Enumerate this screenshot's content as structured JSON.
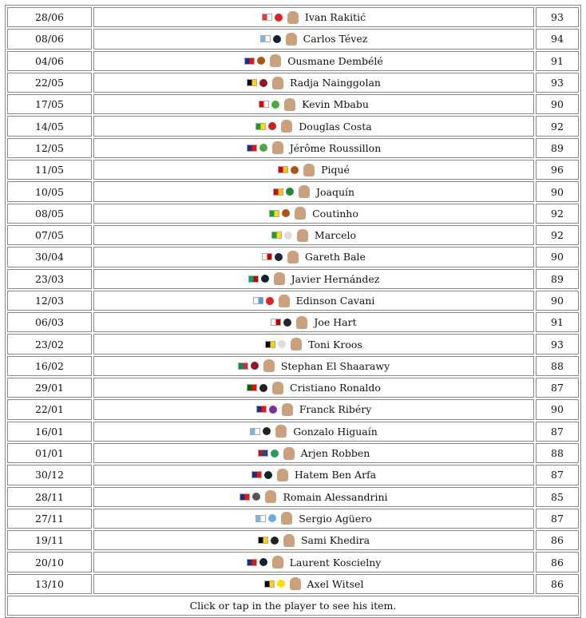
{
  "footer": "Click or tap in the player to see his item.",
  "rows": [
    {
      "date": "28/06",
      "name": "Ivan Rakitić",
      "rating": "93",
      "flag": "hr-flag-icon",
      "club": "sevilla-badge-icon",
      "colors": [
        "#e33",
        "#fff"
      ],
      "club_color": "#d22"
    },
    {
      "date": "08/06",
      "name": "Carlos Tévez",
      "rating": "94",
      "flag": "ar-flag-icon",
      "club": "boca-badge-icon",
      "colors": [
        "#7fb3e6",
        "#fff"
      ],
      "club_color": "#123"
    },
    {
      "date": "04/06",
      "name": "Ousmane Dembélé",
      "rating": "91",
      "flag": "fr-flag-icon",
      "club": "barcelona-badge-icon",
      "colors": [
        "#1a2f8a",
        "#e11"
      ],
      "club_color": "#a51"
    },
    {
      "date": "22/05",
      "name": "Radja Nainggolan",
      "rating": "93",
      "flag": "be-flag-icon",
      "club": "roma-badge-icon",
      "colors": [
        "#000",
        "#ffd400"
      ],
      "club_color": "#8b1a2b"
    },
    {
      "date": "17/05",
      "name": "Kevin Mbabu",
      "rating": "90",
      "flag": "ch-flag-icon",
      "club": "wolfsburg-badge-icon",
      "colors": [
        "#e00",
        "#fff"
      ],
      "club_color": "#4a4"
    },
    {
      "date": "14/05",
      "name": "Douglas Costa",
      "rating": "92",
      "flag": "br-flag-icon",
      "club": "bayern-badge-icon",
      "colors": [
        "#1a9a3a",
        "#ffdc00"
      ],
      "club_color": "#c22"
    },
    {
      "date": "12/05",
      "name": "Jérôme Roussillon",
      "rating": "89",
      "flag": "fr-flag-icon",
      "club": "wolfsburg-badge-icon",
      "colors": [
        "#1a2f8a",
        "#e11"
      ],
      "club_color": "#4a4"
    },
    {
      "date": "11/05",
      "name": "Piqué",
      "rating": "96",
      "flag": "es-flag-icon",
      "club": "barcelona-badge-icon",
      "colors": [
        "#c60b1e",
        "#ffc400"
      ],
      "club_color": "#a51"
    },
    {
      "date": "10/05",
      "name": "Joaquín",
      "rating": "90",
      "flag": "es-flag-icon",
      "club": "betis-badge-icon",
      "colors": [
        "#c60b1e",
        "#ffc400"
      ],
      "club_color": "#1a8a3a"
    },
    {
      "date": "08/05",
      "name": "Coutinho",
      "rating": "92",
      "flag": "br-flag-icon",
      "club": "barcelona-badge-icon",
      "colors": [
        "#1a9a3a",
        "#ffdc00"
      ],
      "club_color": "#a51"
    },
    {
      "date": "07/05",
      "name": "Marcelo",
      "rating": "92",
      "flag": "br-flag-icon",
      "club": "real-madrid-badge-icon",
      "colors": [
        "#1a9a3a",
        "#ffdc00"
      ],
      "club_color": "#ddd"
    },
    {
      "date": "30/04",
      "name": "Gareth Bale",
      "rating": "90",
      "flag": "wales-flag-icon",
      "club": "tottenham-badge-icon",
      "colors": [
        "#fff",
        "#c00"
      ],
      "club_color": "#223"
    },
    {
      "date": "23/03",
      "name": "Javier Hernández",
      "rating": "89",
      "flag": "mx-flag-icon",
      "club": "la-galaxy-badge-icon",
      "colors": [
        "#0a6",
        "#c00"
      ],
      "club_color": "#123"
    },
    {
      "date": "12/03",
      "name": "Edinson Cavani",
      "rating": "90",
      "flag": "uy-flag-icon",
      "club": "man-united-badge-icon",
      "colors": [
        "#fff",
        "#5b9bd5"
      ],
      "club_color": "#d22"
    },
    {
      "date": "06/03",
      "name": "Joe Hart",
      "rating": "91",
      "flag": "en-flag-icon",
      "club": "tottenham-badge-icon",
      "colors": [
        "#fff",
        "#c00"
      ],
      "club_color": "#223"
    },
    {
      "date": "23/02",
      "name": "Toni Kroos",
      "rating": "93",
      "flag": "de-flag-icon",
      "club": "real-madrid-badge-icon",
      "colors": [
        "#000",
        "#ffce00"
      ],
      "club_color": "#ddd"
    },
    {
      "date": "16/02",
      "name": "Stephan El Shaarawy",
      "rating": "88",
      "flag": "it-flag-icon",
      "club": "roma-badge-icon",
      "colors": [
        "#009246",
        "#ce2b37"
      ],
      "club_color": "#8b1a2b"
    },
    {
      "date": "29/01",
      "name": "Cristiano Ronaldo",
      "rating": "87",
      "flag": "pt-flag-icon",
      "club": "juventus-badge-icon",
      "colors": [
        "#060",
        "#f00"
      ],
      "club_color": "#222"
    },
    {
      "date": "22/01",
      "name": "Franck Ribéry",
      "rating": "90",
      "flag": "fr-flag-icon",
      "club": "fiorentina-badge-icon",
      "colors": [
        "#1a2f8a",
        "#e11"
      ],
      "club_color": "#7a2ea0"
    },
    {
      "date": "16/01",
      "name": "Gonzalo Higuaín",
      "rating": "87",
      "flag": "ar-flag-icon",
      "club": "inter-miami-badge-icon",
      "colors": [
        "#7fb3e6",
        "#fff"
      ],
      "club_color": "#222"
    },
    {
      "date": "01/01",
      "name": "Arjen Robben",
      "rating": "88",
      "flag": "nl-flag-icon",
      "club": "groningen-badge-icon",
      "colors": [
        "#ae1c28",
        "#21468b"
      ],
      "club_color": "#2a9a5a"
    },
    {
      "date": "30/12",
      "name": "Hatem Ben Arfa",
      "rating": "87",
      "flag": "fr-flag-icon",
      "club": "bordeaux-badge-icon",
      "colors": [
        "#1a2f8a",
        "#e11"
      ],
      "club_color": "#123"
    },
    {
      "date": "28/11",
      "name": "Romain Alessandrini",
      "rating": "85",
      "flag": "fr-flag-icon",
      "club": "club-badge-icon",
      "colors": [
        "#1a2f8a",
        "#e11"
      ],
      "club_color": "#555"
    },
    {
      "date": "27/11",
      "name": "Sergio Agüero",
      "rating": "87",
      "flag": "ar-flag-icon",
      "club": "man-city-badge-icon",
      "colors": [
        "#7fb3e6",
        "#fff"
      ],
      "club_color": "#6cabdd"
    },
    {
      "date": "19/11",
      "name": "Sami Khedira",
      "rating": "86",
      "flag": "de-flag-icon",
      "club": "juventus-badge-icon",
      "colors": [
        "#000",
        "#ffce00"
      ],
      "club_color": "#222"
    },
    {
      "date": "20/10",
      "name": "Laurent Koscielny",
      "rating": "86",
      "flag": "fr-flag-icon",
      "club": "bordeaux-badge-icon",
      "colors": [
        "#1a2f8a",
        "#e11"
      ],
      "club_color": "#123"
    },
    {
      "date": "13/10",
      "name": "Axel Witsel",
      "rating": "86",
      "flag": "be-flag-icon",
      "club": "dortmund-badge-icon",
      "colors": [
        "#000",
        "#ffd400"
      ],
      "club_color": "#fd0"
    }
  ]
}
